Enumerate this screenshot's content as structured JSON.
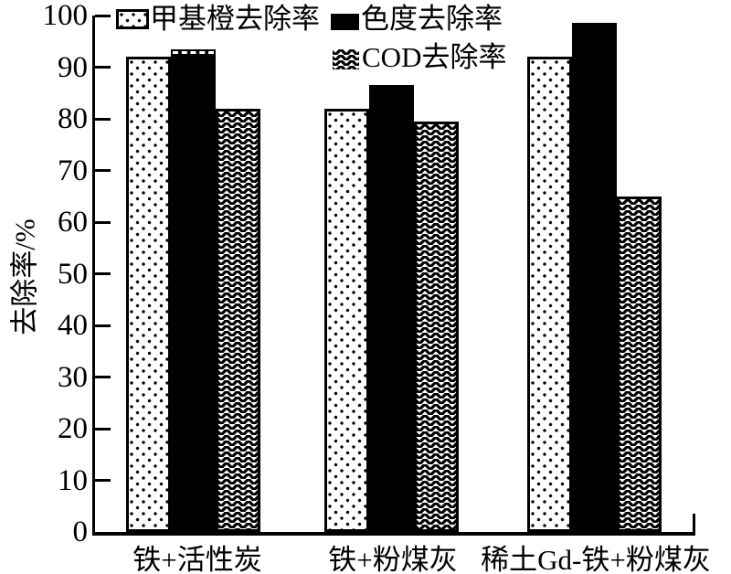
{
  "chart_data": {
    "type": "bar",
    "title": "",
    "categories": [
      "铁+活性炭",
      "铁+粉煤灰",
      "稀土Gd-铁+粉煤灰"
    ],
    "series": [
      {
        "name": "甲基橙去除率",
        "pattern": "dots",
        "values": [
          92,
          82,
          92
        ]
      },
      {
        "name": "色度去除率",
        "pattern": "solid",
        "values": [
          93.5,
          86.5,
          98.5
        ],
        "dashed_top_groups": [
          0
        ]
      },
      {
        "name": "COD去除率",
        "pattern": "zigzag",
        "values": [
          82,
          79.5,
          65
        ]
      }
    ],
    "ylabel": "去除率/%",
    "ylim": [
      0,
      100
    ],
    "yticks": [
      0,
      10,
      20,
      30,
      40,
      50,
      60,
      70,
      80,
      90,
      100
    ],
    "legend_position": "top",
    "grid": false,
    "colors": {
      "foreground": "#000000",
      "background": "#ffffff"
    }
  }
}
